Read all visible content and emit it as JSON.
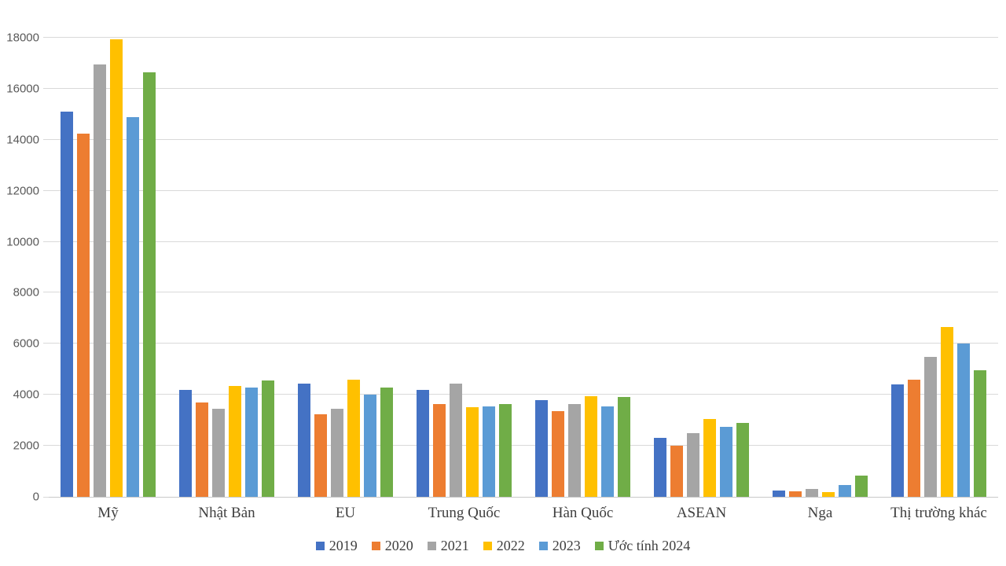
{
  "chart_data": {
    "type": "bar",
    "categories": [
      "Mỹ",
      "Nhật Bản",
      "EU",
      "Trung Quốc",
      "Hàn Quốc",
      "ASEAN",
      "Nga",
      "Thị trường khác"
    ],
    "series": [
      {
        "name": "2019",
        "color": "#4472C4",
        "values": [
          15100,
          4200,
          4450,
          4200,
          3800,
          2300,
          250,
          4400
        ]
      },
      {
        "name": "2020",
        "color": "#ED7D31",
        "values": [
          14250,
          3700,
          3250,
          3650,
          3350,
          2000,
          230,
          4600
        ]
      },
      {
        "name": "2021",
        "color": "#A5A5A5",
        "values": [
          16950,
          3450,
          3450,
          4450,
          3650,
          2500,
          300,
          5500
        ]
      },
      {
        "name": "2022",
        "color": "#FFC000",
        "values": [
          17950,
          4350,
          4600,
          3500,
          3950,
          3050,
          180,
          6650
        ]
      },
      {
        "name": "2023",
        "color": "#5B9BD5",
        "values": [
          14900,
          4300,
          4000,
          3550,
          3550,
          2750,
          450,
          6000
        ]
      },
      {
        "name": "Ước tính 2024",
        "color": "#70AD47",
        "values": [
          16650,
          4550,
          4300,
          3650,
          3900,
          2900,
          820,
          4950
        ]
      }
    ],
    "title": "",
    "xlabel": "",
    "ylabel": "",
    "ylim": [
      0,
      18000
    ],
    "ytick_step": 2000,
    "yticks": [
      0,
      2000,
      4000,
      6000,
      8000,
      10000,
      12000,
      14000,
      16000,
      18000
    ],
    "grid": true,
    "legend_position": "bottom",
    "colors": {
      "gridline": "#D9D9D9",
      "axis_line": "#C9C9C9",
      "axis_number_text": "#595959",
      "category_text": "#3F3F3F",
      "legend_text": "#3F3F3F",
      "background": "#FFFFFF"
    }
  }
}
